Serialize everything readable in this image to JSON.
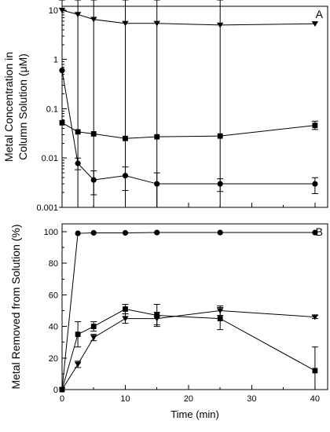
{
  "chart_data": [
    {
      "panel_label": "A",
      "type": "line",
      "ylabel_lines": [
        "Metal Concentration in",
        "Column Solution (μM)"
      ],
      "xlabel": "",
      "yscale": "log",
      "xlim": [
        0,
        42
      ],
      "ylim": [
        0.001,
        12
      ],
      "x_ticks": [
        0,
        10,
        20,
        30,
        40
      ],
      "y_ticks": [
        0.001,
        0.01,
        0.1,
        1,
        10
      ],
      "y_tick_labels": [
        "0.001",
        "0.01",
        "0.1",
        "1",
        "10"
      ],
      "series": [
        {
          "marker": "triangle-down",
          "x": [
            0,
            2.5,
            5,
            10,
            15,
            25,
            40
          ],
          "y": [
            10,
            8.2,
            6.5,
            5.4,
            5.4,
            5.0,
            5.3
          ],
          "err": [
            0,
            0,
            0,
            0,
            0,
            0,
            0
          ]
        },
        {
          "marker": "square",
          "x": [
            0,
            2.5,
            5,
            10,
            15,
            25,
            40
          ],
          "y": [
            0.052,
            0.034,
            0.031,
            0.025,
            0.027,
            0.028,
            0.046
          ],
          "err_low": [
            0,
            0,
            0,
            0,
            0,
            0,
            0.038
          ],
          "err_high": [
            0,
            0,
            0,
            0,
            0,
            0,
            0.056
          ]
        },
        {
          "marker": "circle",
          "x": [
            0,
            2.5,
            5,
            10,
            15,
            25,
            40
          ],
          "y": [
            0.6,
            0.0078,
            0.0036,
            0.0044,
            0.003,
            0.003,
            0.003
          ],
          "err_low": [
            0.6,
            0.0058,
            0.0018,
            0.0022,
            0.001,
            0.0021,
            0.0019
          ],
          "err_high": [
            0.6,
            0.01,
            0.0055,
            0.0066,
            0.005,
            0.0038,
            0.004
          ]
        }
      ]
    },
    {
      "panel_label": "B",
      "type": "line",
      "ylabel_lines": [
        "Metal Removed from Solution (%)"
      ],
      "xlabel": "Time (min)",
      "yscale": "linear",
      "xlim": [
        0,
        42
      ],
      "ylim": [
        0,
        105
      ],
      "x_ticks": [
        0,
        10,
        20,
        30,
        40
      ],
      "y_ticks": [
        0,
        20,
        40,
        60,
        80,
        100
      ],
      "y_tick_labels": [
        "0",
        "20",
        "40",
        "60",
        "80",
        "100"
      ],
      "x_tick_labels": [
        "0",
        "10",
        "20",
        "30",
        "40"
      ],
      "series": [
        {
          "marker": "circle",
          "x": [
            0,
            2.5,
            5,
            10,
            15,
            25,
            40
          ],
          "y": [
            0,
            99,
            99.3,
            99.3,
            99.5,
            99.5,
            99.5
          ],
          "err_low": [
            0,
            0,
            0,
            0,
            0,
            0,
            0
          ],
          "err_high": [
            0,
            0,
            0,
            0,
            0,
            0,
            0
          ]
        },
        {
          "marker": "square",
          "x": [
            0,
            2.5,
            5,
            10,
            15,
            25,
            40
          ],
          "y": [
            0,
            35,
            40,
            51,
            47,
            45,
            12
          ],
          "err_low": [
            0,
            27,
            37,
            48,
            40,
            38,
            0
          ],
          "err_high": [
            0,
            43,
            43,
            54,
            54,
            52,
            27
          ]
        },
        {
          "marker": "triangle-down",
          "x": [
            0,
            2.5,
            5,
            10,
            15,
            25,
            40
          ],
          "y": [
            0,
            16,
            33,
            45,
            45,
            50,
            46
          ],
          "err_low": [
            0,
            14,
            31,
            42,
            41,
            47,
            45
          ],
          "err_high": [
            0,
            18,
            35,
            48,
            49,
            53,
            47
          ]
        }
      ]
    }
  ]
}
